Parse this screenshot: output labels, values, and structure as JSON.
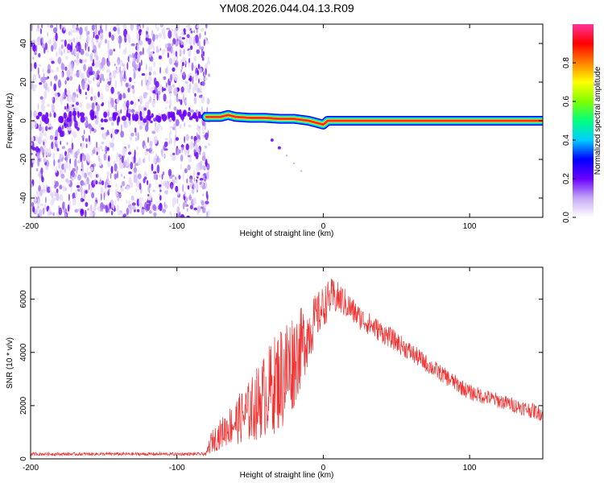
{
  "page_title": "YM08.2026.044.04.13.R09",
  "chart_data": [
    {
      "type": "heatmap",
      "name": "spectrogram",
      "xlabel": "Height of straight line (km)",
      "ylabel": "Frequency (Hz)",
      "xlim": [
        -200,
        150
      ],
      "ylim": [
        -50,
        50
      ],
      "xticks": [
        {
          "value": -200,
          "label": "-200"
        },
        {
          "value": -100,
          "label": "-100"
        },
        {
          "value": 0,
          "label": "0"
        },
        {
          "value": 100,
          "label": "100"
        }
      ],
      "yticks": [
        {
          "value": -40,
          "label": "-40"
        },
        {
          "value": -20,
          "label": "-20"
        },
        {
          "value": 0,
          "label": "0"
        },
        {
          "value": 20,
          "label": "20"
        },
        {
          "value": 40,
          "label": "40"
        }
      ],
      "colorbar": {
        "label": "Normalized spectral amplitude",
        "range": [
          0,
          1
        ],
        "ticks": [
          {
            "value": 0.0,
            "label": "0.0"
          },
          {
            "value": 0.2,
            "label": "0.2"
          },
          {
            "value": 0.4,
            "label": "0.4"
          },
          {
            "value": 0.6,
            "label": "0.6"
          },
          {
            "value": 0.8,
            "label": "0.8"
          }
        ],
        "colors": [
          "#ffffff",
          "#c3a8f5",
          "#6a00ff",
          "#0000ff",
          "#00ccff",
          "#00ff7f",
          "#7fff00",
          "#ffff00",
          "#ff8000",
          "#ff0000",
          "#ff3399"
        ]
      },
      "noise_region": {
        "x_from": -200,
        "x_to": -78,
        "amplitude": 0.2
      },
      "trace": [
        {
          "x": -80,
          "y": 2
        },
        {
          "x": -70,
          "y": 2
        },
        {
          "x": -65,
          "y": 3
        },
        {
          "x": -60,
          "y": 2
        },
        {
          "x": -50,
          "y": 1.5
        },
        {
          "x": -40,
          "y": 1.5
        },
        {
          "x": -30,
          "y": 1
        },
        {
          "x": -20,
          "y": 1
        },
        {
          "x": -10,
          "y": 0
        },
        {
          "x": -5,
          "y": -1
        },
        {
          "x": 0,
          "y": -2
        },
        {
          "x": 3,
          "y": 0
        },
        {
          "x": 50,
          "y": 0
        },
        {
          "x": 100,
          "y": 0
        },
        {
          "x": 150,
          "y": 0
        }
      ],
      "faint_branch": [
        {
          "x": -35,
          "y": -10
        },
        {
          "x": -30,
          "y": -14
        },
        {
          "x": -25,
          "y": -18
        },
        {
          "x": -20,
          "y": -22
        },
        {
          "x": -15,
          "y": -26
        }
      ]
    },
    {
      "type": "line",
      "name": "snr",
      "xlabel": "Height of straight line (km)",
      "ylabel": "SNR (10 * v/v)",
      "xlim": [
        -200,
        150
      ],
      "ylim": [
        0,
        7200
      ],
      "xticks": [
        {
          "value": -200,
          "label": "-200"
        },
        {
          "value": -100,
          "label": "-100"
        },
        {
          "value": 0,
          "label": "0"
        },
        {
          "value": 100,
          "label": "100"
        }
      ],
      "yticks": [
        {
          "value": 0,
          "label": "0"
        },
        {
          "value": 2000,
          "label": "2000"
        },
        {
          "value": 4000,
          "label": "4000"
        },
        {
          "value": 6000,
          "label": "6000"
        }
      ],
      "color": "#ee3333",
      "envelope": [
        {
          "x": -200,
          "mean": 180,
          "spread": 60
        },
        {
          "x": -80,
          "mean": 180,
          "spread": 60
        },
        {
          "x": -77,
          "mean": 600,
          "spread": 400
        },
        {
          "x": -65,
          "mean": 1200,
          "spread": 700
        },
        {
          "x": -50,
          "mean": 1800,
          "spread": 1200
        },
        {
          "x": -40,
          "mean": 2400,
          "spread": 1600
        },
        {
          "x": -25,
          "mean": 3300,
          "spread": 2200
        },
        {
          "x": -15,
          "mean": 4200,
          "spread": 1500
        },
        {
          "x": -5,
          "mean": 5300,
          "spread": 900
        },
        {
          "x": 5,
          "mean": 6100,
          "spread": 700
        },
        {
          "x": 12,
          "mean": 6000,
          "spread": 600
        },
        {
          "x": 25,
          "mean": 5300,
          "spread": 450
        },
        {
          "x": 50,
          "mean": 4400,
          "spread": 380
        },
        {
          "x": 75,
          "mean": 3400,
          "spread": 330
        },
        {
          "x": 100,
          "mean": 2500,
          "spread": 300
        },
        {
          "x": 125,
          "mean": 2100,
          "spread": 280
        },
        {
          "x": 150,
          "mean": 1700,
          "spread": 300
        }
      ]
    }
  ]
}
